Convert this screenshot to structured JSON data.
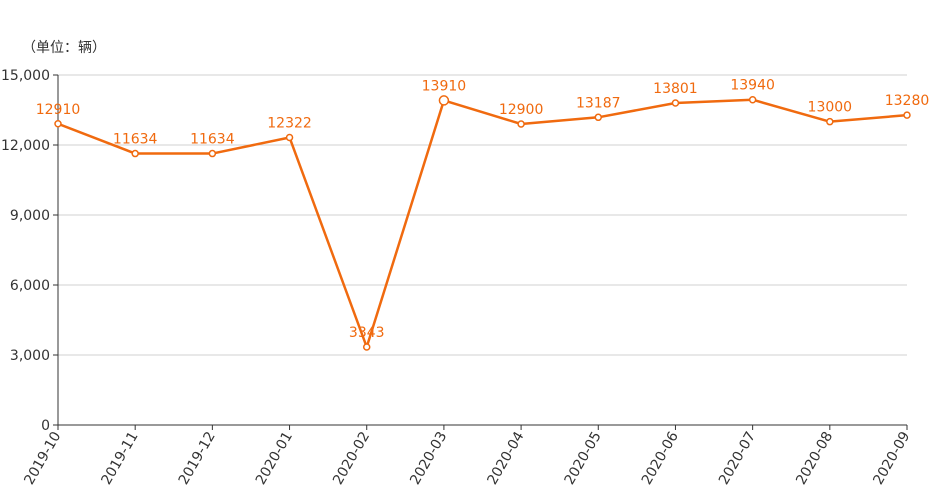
{
  "chart_data": {
    "type": "line",
    "unit_label": "（单位：辆）",
    "categories": [
      "2019-10",
      "2019-11",
      "2019-12",
      "2020-01",
      "2020-02",
      "2020-03",
      "2020-04",
      "2020-05",
      "2020-06",
      "2020-07",
      "2020-08",
      "2020-09"
    ],
    "series": [
      {
        "values": [
          12910,
          11634,
          11634,
          12322,
          3343,
          13910,
          12900,
          13187,
          13801,
          13940,
          13000,
          13280
        ]
      }
    ],
    "y_ticks": [
      0,
      3000,
      6000,
      9000,
      12000,
      15000
    ],
    "y_tick_labels": [
      "0",
      "3,000",
      "6,000",
      "9,000",
      "12,000",
      "15,000"
    ],
    "ylim": [
      0,
      15000
    ],
    "grid": true,
    "colors": {
      "line": "#f06a0f",
      "grid": "#d0d0d0",
      "axis": "#333333"
    }
  }
}
